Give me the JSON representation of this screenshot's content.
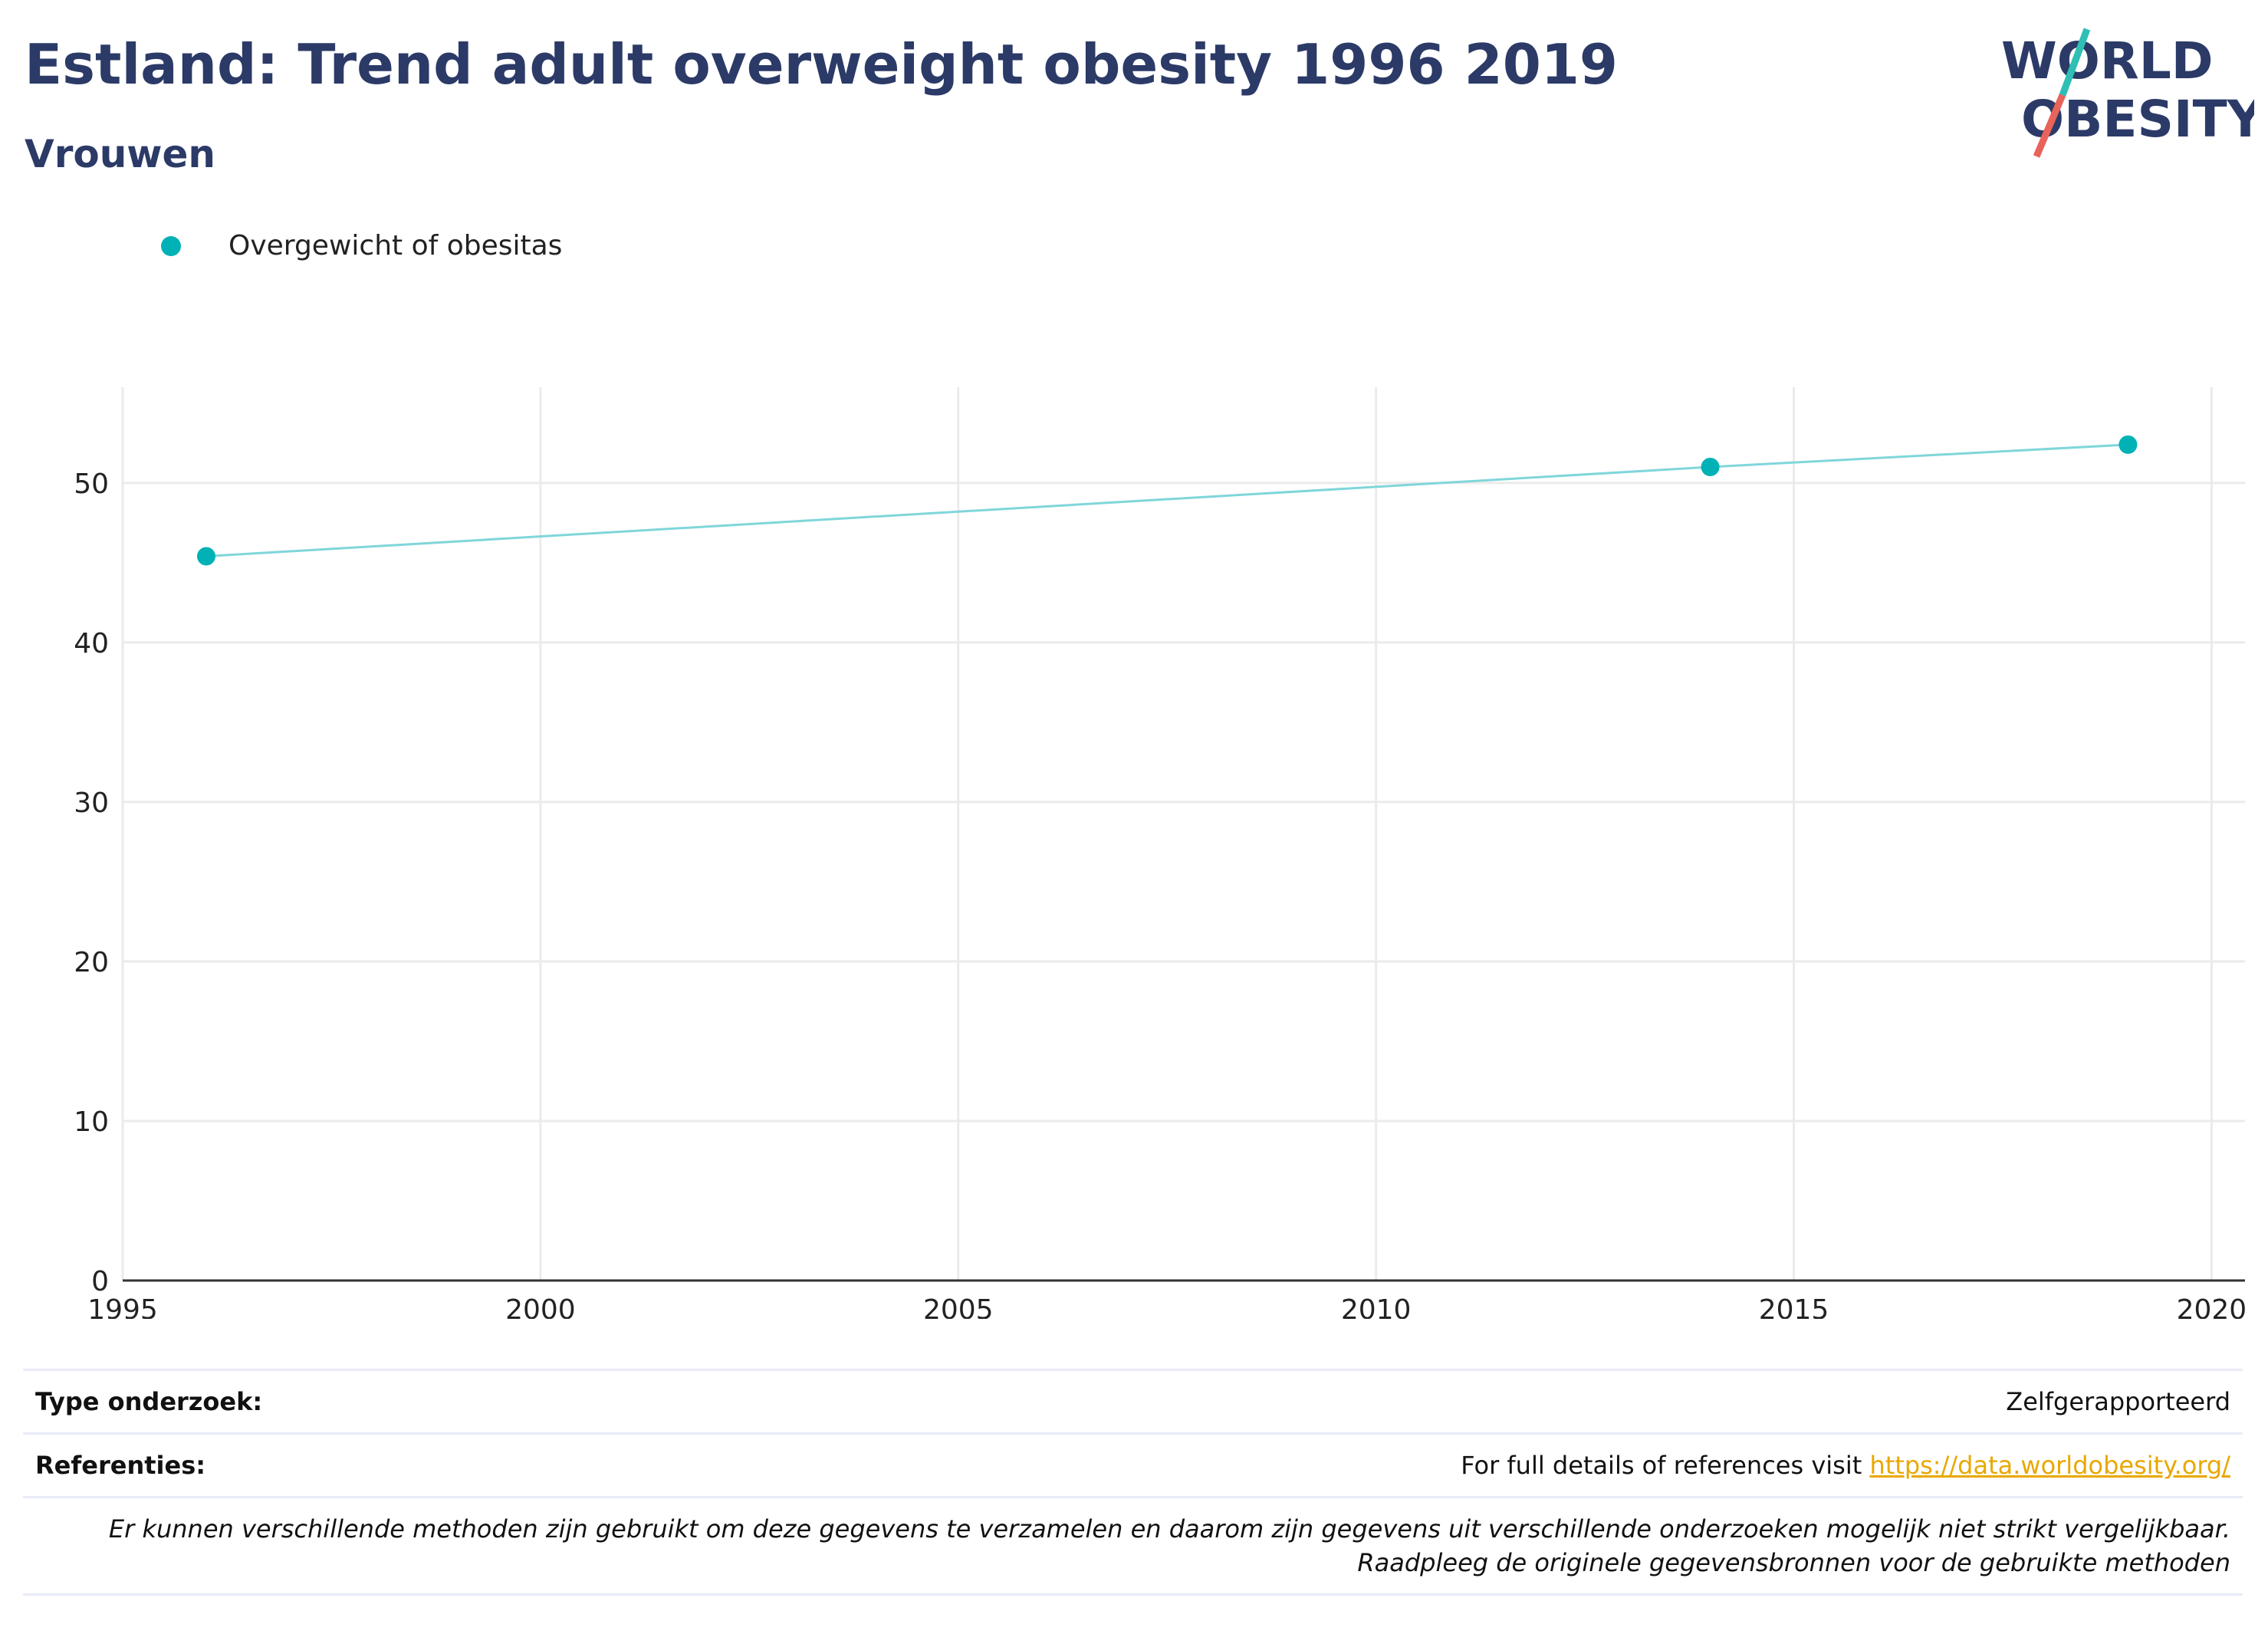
{
  "header": {
    "title": "Estland: Trend adult overweight obesity 1996 2019",
    "subtitle": "Vrouwen"
  },
  "logo": {
    "line1": "WORLD",
    "line2": "OBESITY",
    "colors": {
      "text": "#2b3a67",
      "slash_top": "#2fbfb4",
      "slash_bottom": "#e8635a"
    }
  },
  "legend": {
    "items": [
      {
        "label": "Overgewicht of obesitas",
        "color": "#00b1b5"
      }
    ]
  },
  "chart_data": {
    "type": "line",
    "x_ticks": [
      1995,
      2000,
      2005,
      2010,
      2015,
      2020
    ],
    "y_ticks": [
      0,
      10,
      20,
      30,
      40,
      50
    ],
    "xlim": [
      1995,
      2020.4
    ],
    "ylim": [
      0,
      56
    ],
    "grid": true,
    "series": [
      {
        "name": "Overgewicht of obesitas",
        "color": "#00b1b5",
        "line_color": "#7fd6da",
        "points": [
          {
            "x": 1996,
            "y": 45.4
          },
          {
            "x": 2014,
            "y": 51.0
          },
          {
            "x": 2019,
            "y": 52.4
          }
        ]
      }
    ]
  },
  "info": {
    "survey_type_label": "Type onderzoek:",
    "survey_type_value": "Zelfgerapporteerd",
    "references_label": "Referenties:",
    "references_text": "For full details of references visit",
    "references_link": "https://data.worldobesity.org/",
    "note": "Er kunnen verschillende methoden zijn gebruikt om deze gegevens te verzamelen en daarom zijn gegevens uit verschillende onderzoeken mogelijk niet strikt vergelijkbaar. Raadpleeg de originele gegevensbronnen voor de gebruikte methoden"
  }
}
